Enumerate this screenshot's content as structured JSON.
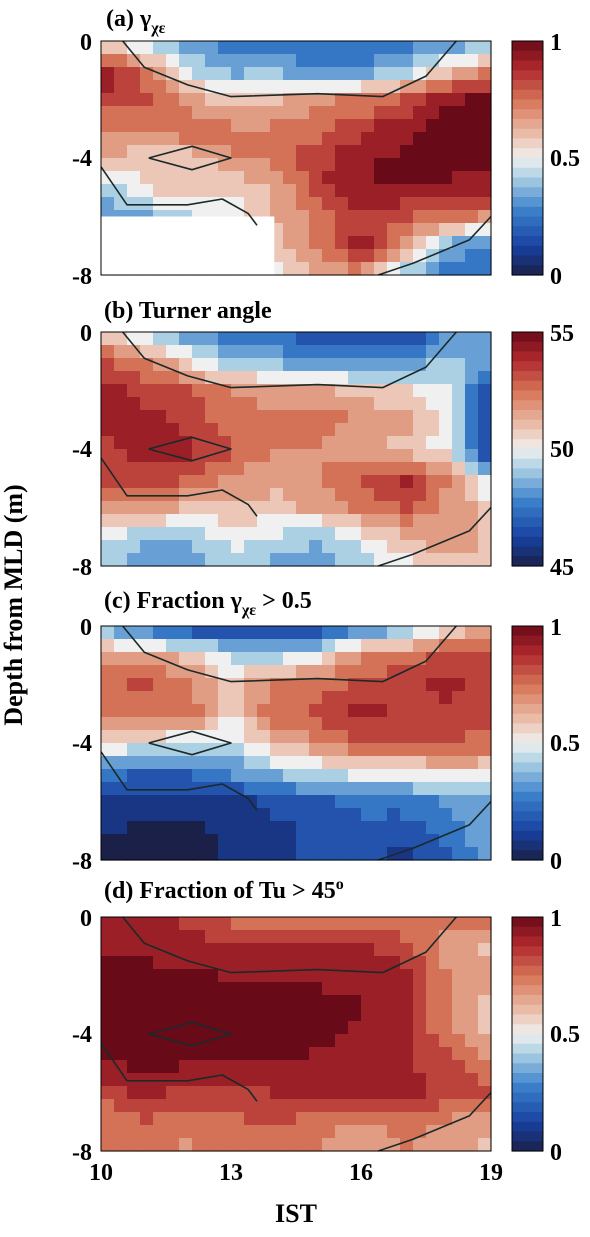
{
  "chart_data": [
    {
      "type": "heatmap",
      "title": "(a) γχε",
      "title_main": "(a) γ",
      "title_sub": "χε",
      "ylabel": "Depth from MLD (m)",
      "xlim": [
        10,
        19
      ],
      "ylim": [
        -8,
        0
      ],
      "yticks": [
        "0",
        "-4",
        "-8"
      ],
      "colorbar": {
        "min": 0,
        "max": 1,
        "ticks": [
          "1",
          "0.5",
          "0"
        ],
        "colormap": "blue-white-red"
      },
      "x": [
        10,
        11,
        12,
        13,
        14,
        15,
        16,
        17,
        18,
        19
      ],
      "depth": [
        0,
        -1,
        -2,
        -3,
        -4,
        -5,
        -6,
        -7,
        -8
      ],
      "values": [
        [
          0.52,
          0.4,
          0.3,
          0.25,
          0.25,
          0.22,
          0.2,
          0.25,
          0.3,
          0.35
        ],
        [
          0.95,
          0.75,
          0.45,
          0.35,
          0.35,
          0.3,
          0.3,
          0.4,
          0.55,
          0.7
        ],
        [
          0.85,
          0.82,
          0.68,
          0.55,
          0.62,
          0.7,
          0.72,
          0.8,
          0.95,
          0.97
        ],
        [
          0.7,
          0.72,
          0.8,
          0.72,
          0.72,
          0.75,
          0.85,
          0.95,
          0.98,
          0.98
        ],
        [
          0.62,
          0.58,
          0.55,
          0.7,
          0.75,
          0.85,
          0.95,
          0.97,
          0.98,
          0.97
        ],
        [
          0.4,
          0.55,
          0.62,
          0.55,
          0.62,
          0.85,
          0.95,
          0.97,
          0.95,
          0.92
        ],
        [
          0.32,
          0.35,
          0.45,
          0.5,
          0.62,
          0.75,
          0.85,
          0.8,
          0.72,
          0.7
        ],
        [
          0.4,
          0.35,
          0.35,
          0.4,
          0.55,
          0.75,
          0.92,
          0.7,
          0.35,
          0.25
        ],
        [
          0.4,
          0.4,
          0.4,
          0.45,
          0.5,
          0.6,
          0.7,
          0.4,
          0.25,
          0.2
        ]
      ],
      "masked_region": {
        "x": [
          10,
          14
        ],
        "depth": [
          -6,
          -8
        ]
      }
    },
    {
      "type": "heatmap",
      "title": "(b) Turner angle",
      "xlim": [
        10,
        19
      ],
      "ylim": [
        -8,
        0
      ],
      "yticks": [
        "0",
        "-4",
        "-8"
      ],
      "colorbar": {
        "min": 45,
        "max": 55,
        "ticks": [
          "55",
          "50",
          "45"
        ],
        "colormap": "blue-white-red"
      },
      "x": [
        10,
        11,
        12,
        13,
        14,
        15,
        16,
        17,
        18,
        19
      ],
      "depth": [
        0,
        -1,
        -2,
        -3,
        -4,
        -5,
        -6,
        -7,
        -8
      ],
      "values": [
        [
          51,
          49,
          48,
          47,
          47,
          46.5,
          46.5,
          46,
          48,
          49
        ],
        [
          53,
          52,
          50.5,
          49,
          48.5,
          48,
          47.5,
          48,
          49,
          48
        ],
        [
          54,
          53.5,
          53,
          52,
          51.5,
          51.5,
          51,
          50.5,
          50,
          46
        ],
        [
          54,
          54,
          53.5,
          52.5,
          52.5,
          52.5,
          52,
          51.5,
          50,
          46
        ],
        [
          53.5,
          54,
          54,
          53,
          52,
          52,
          51.5,
          51,
          50,
          45.5
        ],
        [
          53,
          53.5,
          53,
          52,
          51.5,
          52,
          53,
          54,
          52,
          49
        ],
        [
          52,
          52,
          51,
          51,
          51,
          51.5,
          52.5,
          53,
          52,
          51
        ],
        [
          50,
          49,
          49,
          50,
          49.5,
          49,
          50,
          51,
          52,
          51
        ],
        [
          49,
          48,
          48,
          49,
          48.5,
          48,
          49,
          50,
          51,
          51
        ]
      ]
    },
    {
      "type": "heatmap",
      "title": "(c) Fraction γχε > 0.5",
      "title_pre": "(c) Fraction γ",
      "title_sub": "χε",
      "title_post": " > 0.5",
      "xlim": [
        10,
        19
      ],
      "ylim": [
        -8,
        0
      ],
      "yticks": [
        "0",
        "-4",
        "-8"
      ],
      "colorbar": {
        "min": 0,
        "max": 1,
        "ticks": [
          "1",
          "0.5",
          "0"
        ],
        "colormap": "blue-white-red"
      },
      "x": [
        10,
        11,
        12,
        13,
        14,
        15,
        16,
        17,
        18,
        19
      ],
      "depth": [
        0,
        -1,
        -2,
        -3,
        -4,
        -5,
        -6,
        -7,
        -8
      ],
      "values": [
        [
          0.3,
          0.2,
          0.1,
          0.1,
          0.08,
          0.12,
          0.2,
          0.3,
          0.55,
          0.6
        ],
        [
          0.7,
          0.65,
          0.6,
          0.45,
          0.4,
          0.5,
          0.7,
          0.75,
          0.8,
          0.8
        ],
        [
          0.78,
          0.8,
          0.75,
          0.55,
          0.75,
          0.78,
          0.8,
          0.85,
          0.9,
          0.85
        ],
        [
          0.7,
          0.75,
          0.78,
          0.52,
          0.78,
          0.8,
          0.92,
          0.85,
          0.85,
          0.8
        ],
        [
          0.55,
          0.5,
          0.45,
          0.45,
          0.62,
          0.7,
          0.8,
          0.82,
          0.82,
          0.75
        ],
        [
          0.25,
          0.2,
          0.22,
          0.3,
          0.4,
          0.45,
          0.5,
          0.5,
          0.55,
          0.55
        ],
        [
          0.1,
          0.08,
          0.08,
          0.1,
          0.15,
          0.2,
          0.22,
          0.25,
          0.3,
          0.35
        ],
        [
          0.05,
          0.03,
          0.03,
          0.05,
          0.1,
          0.15,
          0.2,
          0.15,
          0.25,
          0.35
        ],
        [
          0.03,
          0.03,
          0.03,
          0.05,
          0.1,
          0.15,
          0.15,
          0.1,
          0.2,
          0.35
        ]
      ]
    },
    {
      "type": "heatmap",
      "title": "(d) Fraction of Tu > 45º",
      "title_main": "(d) Fraction of Tu > 45",
      "title_sup": "o",
      "xlabel": "IST",
      "xlim": [
        10,
        19
      ],
      "ylim": [
        -8,
        0
      ],
      "xticks": [
        "10",
        "13",
        "16",
        "19"
      ],
      "yticks": [
        "0",
        "-4",
        "-8"
      ],
      "colorbar": {
        "min": 0,
        "max": 1,
        "ticks": [
          "1",
          "0.5",
          "0"
        ],
        "colormap": "blue-white-red"
      },
      "x": [
        10,
        11,
        12,
        13,
        14,
        15,
        16,
        17,
        18,
        19
      ],
      "depth": [
        0,
        -1,
        -2,
        -3,
        -4,
        -5,
        -6,
        -7,
        -8
      ],
      "values": [
        [
          0.85,
          0.88,
          0.85,
          0.75,
          0.75,
          0.72,
          0.72,
          0.75,
          0.75,
          0.75
        ],
        [
          0.95,
          0.95,
          0.92,
          0.9,
          0.92,
          0.92,
          0.9,
          0.8,
          0.65,
          0.6
        ],
        [
          0.98,
          0.97,
          0.97,
          0.95,
          0.95,
          0.95,
          0.95,
          0.92,
          0.72,
          0.65
        ],
        [
          0.98,
          0.98,
          0.98,
          0.97,
          0.97,
          0.97,
          0.96,
          0.92,
          0.7,
          0.6
        ],
        [
          0.98,
          0.98,
          0.98,
          0.97,
          0.97,
          0.97,
          0.95,
          0.9,
          0.72,
          0.6
        ],
        [
          0.96,
          0.97,
          0.97,
          0.96,
          0.96,
          0.95,
          0.93,
          0.9,
          0.82,
          0.7
        ],
        [
          0.8,
          0.92,
          0.85,
          0.85,
          0.88,
          0.92,
          0.9,
          0.9,
          0.85,
          0.8
        ],
        [
          0.75,
          0.78,
          0.72,
          0.78,
          0.8,
          0.75,
          0.7,
          0.75,
          0.7,
          0.65
        ],
        [
          0.75,
          0.7,
          0.7,
          0.75,
          0.75,
          0.7,
          0.65,
          0.7,
          0.65,
          0.6
        ]
      ]
    }
  ],
  "contours": [
    {
      "name": "upper",
      "points": [
        [
          10.5,
          0
        ],
        [
          11,
          -0.9
        ],
        [
          12,
          -1.5
        ],
        [
          13,
          -1.9
        ],
        [
          15,
          -1.8
        ],
        [
          16.5,
          -1.9
        ],
        [
          17.5,
          -1.2
        ],
        [
          18.2,
          0
        ]
      ]
    },
    {
      "name": "lower-left",
      "points": [
        [
          10,
          -4.3
        ],
        [
          10.6,
          -5.6
        ],
        [
          12,
          -5.6
        ],
        [
          12.8,
          -5.4
        ],
        [
          13.4,
          -5.9
        ],
        [
          13.6,
          -6.3
        ]
      ]
    },
    {
      "name": "lower-right",
      "points": [
        [
          16.4,
          -8
        ],
        [
          17.2,
          -7.6
        ],
        [
          18.5,
          -6.8
        ],
        [
          19,
          -6
        ]
      ]
    },
    {
      "name": "diamond",
      "points": [
        [
          11.1,
          -4
        ],
        [
          12.1,
          -3.6
        ],
        [
          13,
          -4
        ],
        [
          12.1,
          -4.4
        ],
        [
          11.1,
          -4
        ]
      ]
    }
  ]
}
